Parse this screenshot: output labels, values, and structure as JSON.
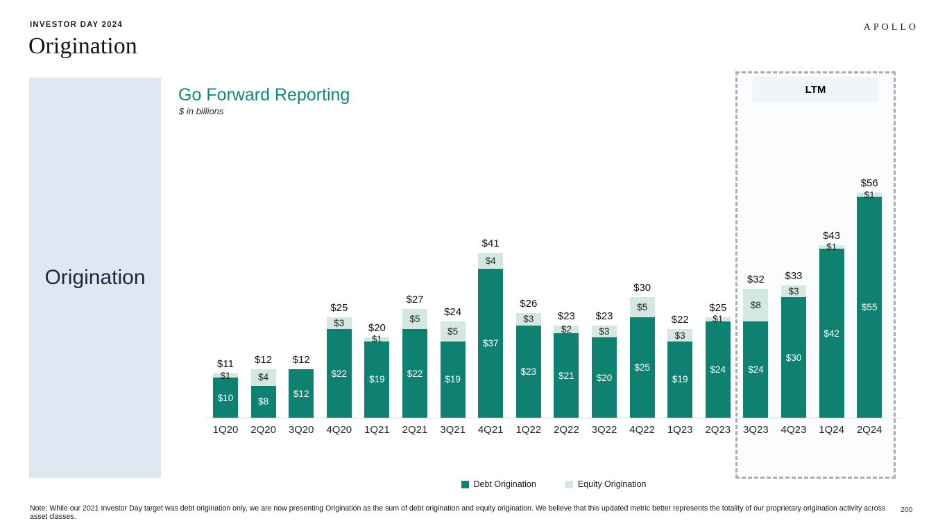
{
  "header": {
    "eyebrow": "INVESTOR DAY 2024",
    "title": "Origination",
    "brand": "APOLLO"
  },
  "sidebar": {
    "label": "Origination"
  },
  "chart": {
    "title": "Go Forward Reporting",
    "subtitle": "$ in billions",
    "ltm_label": "LTM"
  },
  "legend": [
    {
      "label": "Debt Origination",
      "color": "#0e8170"
    },
    {
      "label": "Equity Origination",
      "color": "#d3e8e1"
    }
  ],
  "footer": {
    "note": "Note: While our 2021 Investor Day target was debt origination only, we are now presenting Origination as the sum of debt origination and equity origination. We believe that this updated metric better represents the totality of our proprietary origination activity across asset classes.",
    "page_number": "200"
  },
  "colors": {
    "debt_bar": "#0e8170",
    "equity_bar": "#d3e8e1",
    "chart_title": "#0e8a74",
    "sidebar_background": "#dde8f3",
    "axis_line": "#d8d8d8",
    "ltm_border": "#a9adb0"
  },
  "chart_data": {
    "type": "bar",
    "stacked": true,
    "title": "Go Forward Reporting",
    "subtitle": "$ in billions",
    "value_prefix": "$",
    "categories": [
      "1Q20",
      "2Q20",
      "3Q20",
      "4Q20",
      "1Q21",
      "2Q21",
      "3Q21",
      "4Q21",
      "1Q22",
      "2Q22",
      "3Q22",
      "4Q22",
      "1Q23",
      "2Q23",
      "3Q23",
      "4Q23",
      "1Q24",
      "2Q24"
    ],
    "series": [
      {
        "name": "Debt Origination",
        "color": "#0e8170",
        "values": [
          10,
          8,
          12,
          22,
          19,
          22,
          19,
          37,
          23,
          21,
          20,
          25,
          19,
          24,
          24,
          30,
          42,
          55
        ]
      },
      {
        "name": "Equity Origination",
        "color": "#d3e8e1",
        "values": [
          1,
          4,
          0,
          3,
          1,
          5,
          5,
          4,
          3,
          2,
          3,
          5,
          3,
          1,
          8,
          3,
          1,
          1
        ]
      }
    ],
    "totals": [
      11,
      12,
      12,
      25,
      20,
      27,
      24,
      41,
      26,
      23,
      23,
      30,
      22,
      25,
      32,
      33,
      43,
      56
    ],
    "ltm_categories": [
      "3Q23",
      "4Q23",
      "1Q24",
      "2Q24"
    ],
    "ylim": [
      0,
      60
    ],
    "grid": false,
    "legend_position": "bottom"
  }
}
